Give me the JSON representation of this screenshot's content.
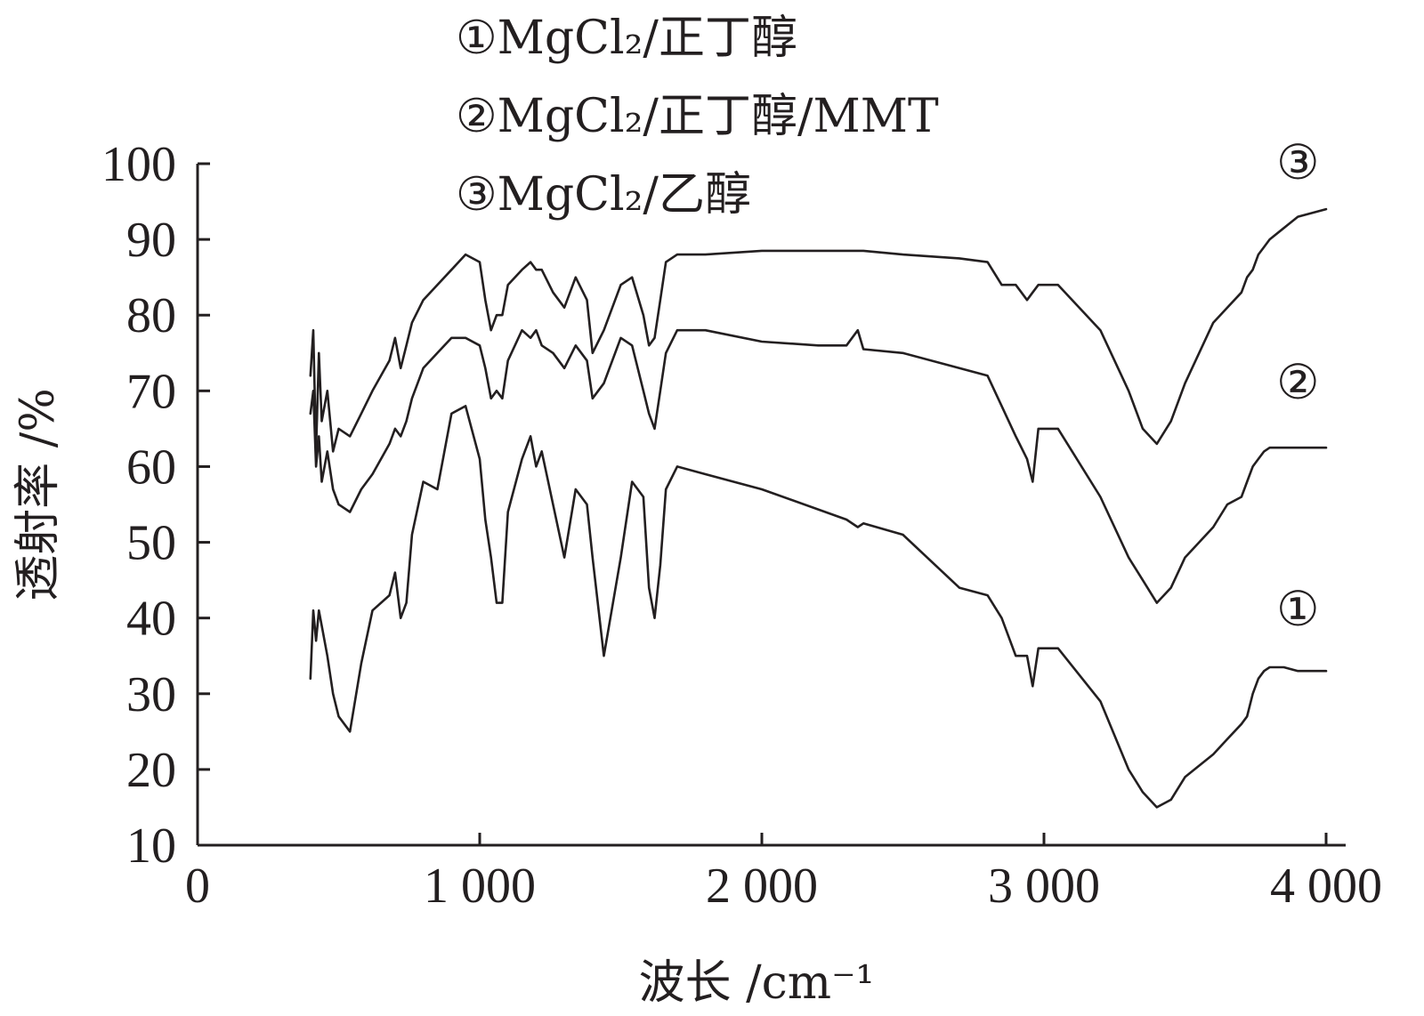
{
  "chart_data": {
    "type": "line",
    "xlabel": "波长 /cm⁻¹",
    "ylabel": "透射率 /%",
    "xlim": [
      0,
      4000
    ],
    "ylim": [
      10,
      100
    ],
    "x_ticks": [
      0,
      1000,
      2000,
      3000,
      4000
    ],
    "x_tick_labels": [
      "0",
      "1 000",
      "2 000",
      "3 000",
      "4 000"
    ],
    "y_ticks": [
      10,
      20,
      30,
      40,
      50,
      60,
      70,
      80,
      90,
      100
    ],
    "y_tick_labels": [
      "10",
      "20",
      "30",
      "40",
      "50",
      "60",
      "70",
      "80",
      "90",
      "100"
    ],
    "grid": false,
    "legend_position": "top-left",
    "legend": [
      {
        "marker": "①",
        "label": "MgCl₂/正丁醇"
      },
      {
        "marker": "②",
        "label": "MgCl₂/正丁醇/MMT"
      },
      {
        "marker": "③",
        "label": "MgCl₂/乙醇"
      }
    ],
    "series": [
      {
        "tag": "①",
        "tag_at": [
          3900,
          39
        ],
        "x": [
          400,
          410,
          420,
          430,
          440,
          460,
          480,
          500,
          540,
          580,
          620,
          680,
          700,
          720,
          740,
          760,
          800,
          850,
          900,
          950,
          1000,
          1020,
          1040,
          1060,
          1080,
          1100,
          1150,
          1180,
          1200,
          1220,
          1260,
          1300,
          1340,
          1380,
          1400,
          1440,
          1500,
          1540,
          1580,
          1600,
          1620,
          1640,
          1660,
          1700,
          1800,
          2000,
          2300,
          2340,
          2360,
          2500,
          2700,
          2800,
          2850,
          2900,
          2940,
          2960,
          2980,
          3050,
          3200,
          3300,
          3350,
          3400,
          3450,
          3500,
          3600,
          3650,
          3700,
          3720,
          3740,
          3760,
          3780,
          3800,
          3850,
          3900,
          4000
        ],
        "y": [
          32,
          41,
          37,
          41,
          39,
          35,
          30,
          27,
          25,
          34,
          41,
          43,
          46,
          40,
          42,
          51,
          58,
          57,
          67,
          68,
          61,
          53,
          48,
          42,
          42,
          54,
          61,
          64,
          60,
          62,
          55,
          48,
          57,
          55,
          48,
          35,
          48,
          58,
          56,
          44,
          40,
          47,
          57,
          60,
          59,
          57,
          53,
          52,
          52.5,
          51,
          44,
          43,
          40,
          35,
          35,
          31,
          36,
          36,
          29,
          20,
          17,
          15,
          16,
          19,
          22,
          24,
          26,
          27,
          30,
          32,
          33,
          33.5,
          33.5,
          33,
          33
        ]
      },
      {
        "tag": "②",
        "tag_at": [
          3900,
          69
        ],
        "x": [
          400,
          410,
          420,
          430,
          440,
          460,
          480,
          500,
          540,
          580,
          620,
          680,
          700,
          720,
          740,
          760,
          800,
          850,
          900,
          950,
          1000,
          1020,
          1040,
          1060,
          1080,
          1100,
          1150,
          1180,
          1200,
          1220,
          1260,
          1300,
          1340,
          1380,
          1400,
          1440,
          1500,
          1540,
          1580,
          1600,
          1620,
          1640,
          1660,
          1700,
          1800,
          2000,
          2200,
          2300,
          2340,
          2360,
          2500,
          2700,
          2800,
          2850,
          2900,
          2940,
          2960,
          2980,
          3050,
          3200,
          3300,
          3350,
          3400,
          3450,
          3500,
          3600,
          3650,
          3700,
          3720,
          3740,
          3760,
          3780,
          3800,
          3850,
          3900,
          4000
        ],
        "y": [
          67,
          70,
          60,
          64,
          58,
          62,
          57,
          55,
          54,
          57,
          59,
          63,
          65,
          64,
          66,
          69,
          73,
          75,
          77,
          77,
          76,
          73,
          69,
          70,
          69,
          74,
          78,
          77,
          78,
          76,
          75,
          73,
          76,
          74,
          69,
          71,
          77,
          76,
          70,
          67,
          65,
          70,
          75,
          78,
          78,
          76.5,
          76,
          76,
          78,
          75.5,
          75,
          73,
          72,
          68,
          64,
          61,
          58,
          65,
          65,
          56,
          48,
          45,
          42,
          44,
          48,
          52,
          55,
          56,
          58,
          60,
          61,
          62,
          62.5,
          62.5,
          62.5,
          62.5
        ]
      },
      {
        "tag": "③",
        "tag_at": [
          3900,
          98
        ],
        "x": [
          400,
          410,
          420,
          430,
          440,
          460,
          480,
          500,
          540,
          580,
          620,
          680,
          700,
          720,
          740,
          760,
          800,
          850,
          900,
          950,
          1000,
          1020,
          1040,
          1060,
          1080,
          1100,
          1150,
          1180,
          1200,
          1220,
          1260,
          1300,
          1340,
          1380,
          1400,
          1440,
          1500,
          1540,
          1580,
          1600,
          1620,
          1640,
          1660,
          1700,
          1800,
          2000,
          2300,
          2340,
          2360,
          2500,
          2700,
          2800,
          2850,
          2900,
          2940,
          2960,
          2980,
          3050,
          3200,
          3300,
          3350,
          3400,
          3450,
          3500,
          3600,
          3650,
          3700,
          3720,
          3740,
          3760,
          3780,
          3800,
          3850,
          3900,
          4000
        ],
        "y": [
          72,
          78,
          62,
          75,
          66,
          70,
          62,
          65,
          64,
          67,
          70,
          74,
          77,
          73,
          76,
          79,
          82,
          84,
          86,
          88,
          87,
          82,
          78,
          80,
          80,
          84,
          86,
          87,
          86,
          86,
          83,
          81,
          85,
          82,
          75,
          78,
          84,
          85,
          80,
          76,
          77,
          82,
          87,
          88,
          88,
          88.5,
          88.5,
          88.5,
          88.5,
          88,
          87.5,
          87,
          84,
          84,
          82,
          83,
          84,
          84,
          78,
          70,
          65,
          63,
          66,
          71,
          79,
          81,
          83,
          85,
          86,
          88,
          89,
          90,
          91.5,
          93,
          94
        ]
      }
    ]
  }
}
